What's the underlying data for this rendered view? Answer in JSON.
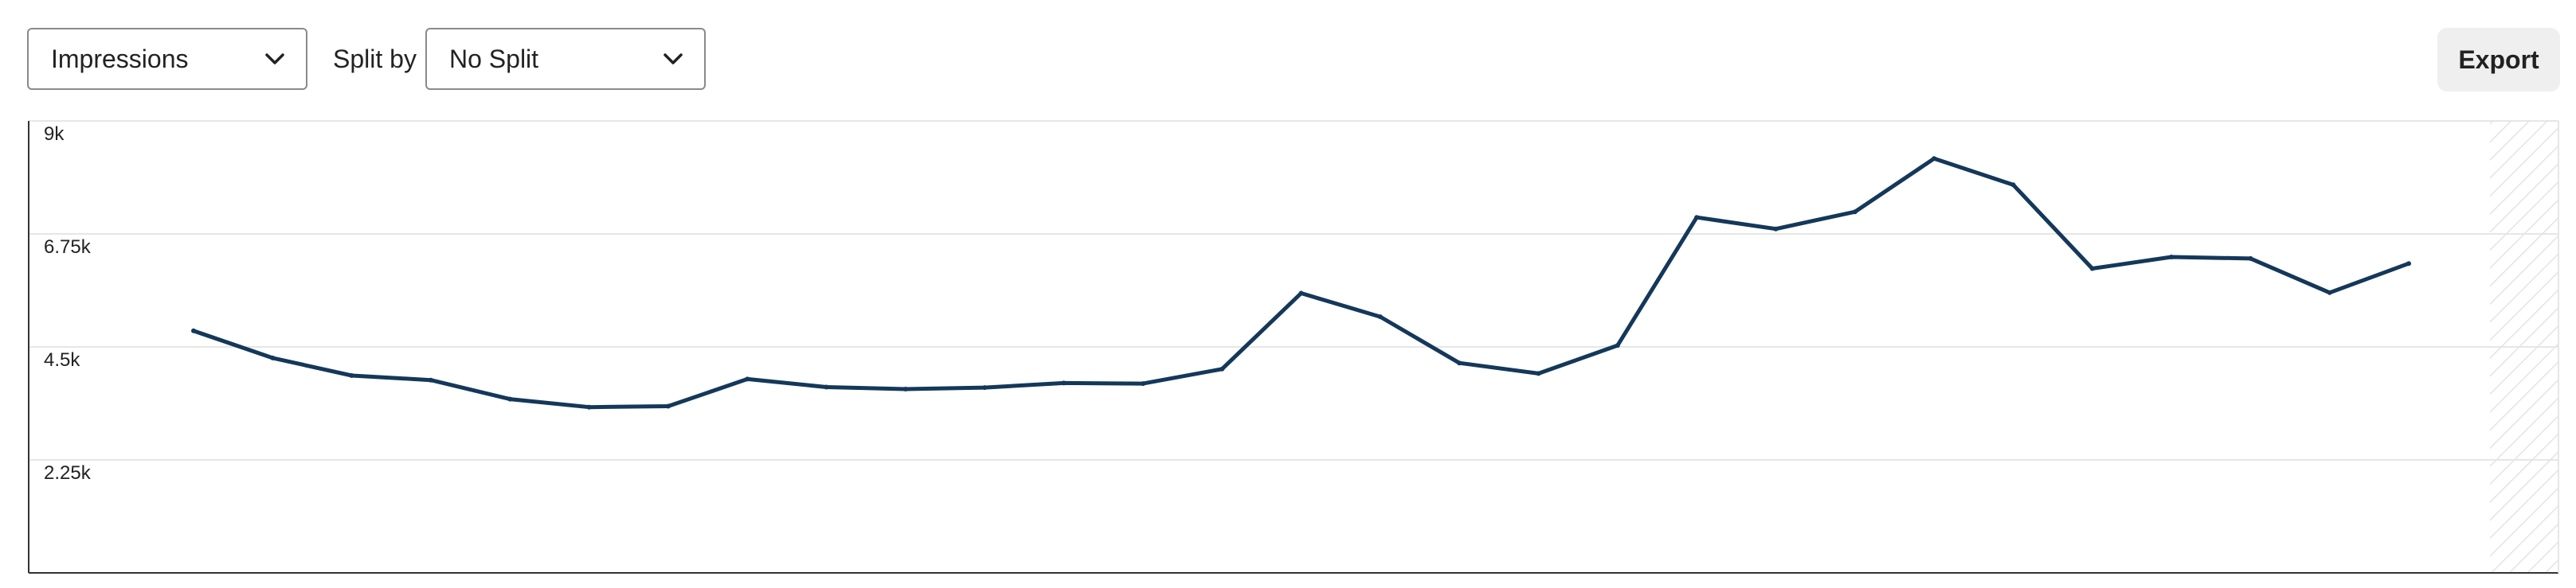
{
  "toolbar": {
    "metric_select": {
      "value": "Impressions",
      "icon": "chevron-down-icon"
    },
    "split_label": "Split by",
    "split_select": {
      "value": "No Split",
      "icon": "chevron-down-icon"
    },
    "export_label": "Export"
  },
  "colors": {
    "line": "#14385a",
    "grid": "#e6e6e6",
    "axis": "#333333",
    "hatch": "#e4e4e4"
  },
  "chart_data": {
    "type": "line",
    "title": "",
    "xlabel": "",
    "ylabel": "",
    "ylim": [
      0,
      9000
    ],
    "y_ticks": [
      {
        "value": 2250,
        "label": "2.25k"
      },
      {
        "value": 4500,
        "label": "4.5k"
      },
      {
        "value": 6750,
        "label": "6.75k"
      },
      {
        "value": 9000,
        "label": "9k"
      }
    ],
    "grid": true,
    "incomplete_period_shaded": true,
    "series": [
      {
        "values": [
          4820,
          4280,
          3930,
          3840,
          3460,
          3300,
          3320,
          3860,
          3700,
          3660,
          3690,
          3780,
          3770,
          4060,
          5570,
          5100,
          4180,
          3970,
          4530,
          7080,
          6850,
          7190,
          8250,
          7730,
          6060,
          6290,
          6260,
          5580,
          6160
        ]
      }
    ]
  }
}
